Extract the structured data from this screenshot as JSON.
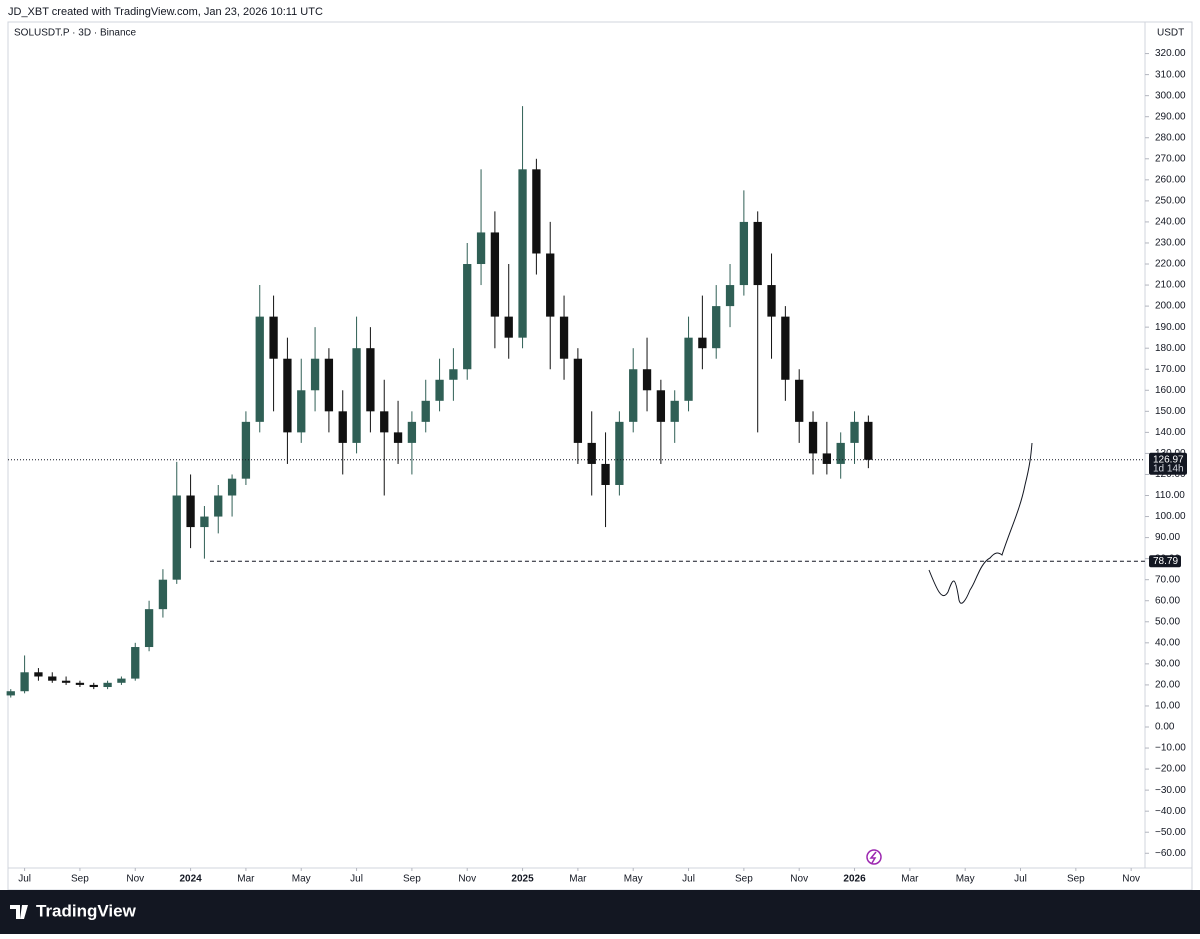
{
  "header": "JD_XBT created with TradingView.com, Jan 23, 2026 10:11 UTC",
  "footer": "TradingView",
  "chart_data": {
    "type": "candlestick",
    "title": "SOLUSDT.P · 3D · Binance",
    "ylabel": "USDT",
    "up_color": "#2f5f55",
    "down_color": "#111111",
    "x": [
      -0.5,
      0,
      0.5,
      1,
      1.5,
      2,
      2.5,
      3,
      3.5,
      4,
      4.5,
      5,
      5.5,
      6,
      6.5,
      7,
      7.5,
      8,
      8.5,
      9,
      9.5,
      10,
      10.5,
      11,
      11.5,
      12,
      12.5,
      13,
      13.5,
      14,
      14.5,
      15,
      15.5,
      16,
      16.5,
      17,
      17.5,
      18,
      18.5,
      19,
      19.5,
      20,
      20.5,
      21,
      21.5,
      22,
      22.5,
      23,
      23.5,
      24,
      24.5,
      25,
      25.5,
      26,
      26.5,
      27,
      27.5,
      28,
      28.5,
      29,
      29.5,
      30,
      30.5
    ],
    "open": [
      15,
      17,
      26,
      24,
      22,
      21,
      20,
      19,
      21,
      23,
      38,
      56,
      70,
      110,
      95,
      100,
      110,
      118,
      145,
      195,
      175,
      140,
      160,
      175,
      150,
      135,
      180,
      150,
      140,
      135,
      145,
      155,
      165,
      170,
      220,
      235,
      195,
      185,
      265,
      225,
      195,
      175,
      135,
      125,
      115,
      145,
      170,
      160,
      145,
      155,
      185,
      180,
      200,
      210,
      240,
      210,
      195,
      165,
      145,
      130,
      125,
      135,
      145
    ],
    "high": [
      18,
      34,
      28,
      26,
      24,
      22,
      21,
      22,
      24,
      40,
      60,
      75,
      126,
      120,
      105,
      115,
      120,
      150,
      210,
      205,
      185,
      175,
      190,
      180,
      160,
      195,
      190,
      165,
      155,
      150,
      165,
      175,
      180,
      230,
      265,
      245,
      220,
      295,
      270,
      240,
      205,
      180,
      150,
      140,
      150,
      180,
      185,
      165,
      160,
      195,
      205,
      210,
      220,
      255,
      245,
      225,
      200,
      170,
      150,
      145,
      140,
      150,
      148
    ],
    "low": [
      14,
      16,
      22,
      21,
      20,
      19,
      18,
      18,
      20,
      22,
      36,
      52,
      68,
      85,
      80,
      92,
      100,
      115,
      140,
      150,
      125,
      135,
      150,
      140,
      120,
      130,
      140,
      110,
      125,
      120,
      140,
      150,
      155,
      165,
      210,
      180,
      175,
      180,
      215,
      170,
      165,
      125,
      110,
      95,
      110,
      140,
      150,
      125,
      135,
      150,
      170,
      175,
      190,
      205,
      140,
      175,
      155,
      135,
      120,
      120,
      118,
      125,
      123
    ],
    "close": [
      17,
      26,
      24,
      22,
      21,
      20,
      19,
      21,
      23,
      38,
      56,
      70,
      110,
      95,
      100,
      110,
      118,
      145,
      195,
      175,
      140,
      160,
      175,
      150,
      135,
      180,
      150,
      140,
      135,
      145,
      155,
      165,
      170,
      220,
      235,
      195,
      185,
      265,
      225,
      195,
      175,
      135,
      125,
      115,
      145,
      170,
      160,
      145,
      155,
      185,
      180,
      200,
      210,
      240,
      210,
      195,
      165,
      145,
      130,
      125,
      135,
      145,
      126.97
    ],
    "xlim": [
      -0.6,
      40.5
    ],
    "xticks": [
      {
        "value": 0,
        "label": "Jul"
      },
      {
        "value": 2,
        "label": "Sep"
      },
      {
        "value": 4,
        "label": "Nov"
      },
      {
        "value": 6,
        "label": "2024"
      },
      {
        "value": 8,
        "label": "Mar"
      },
      {
        "value": 10,
        "label": "May"
      },
      {
        "value": 12,
        "label": "Jul"
      },
      {
        "value": 14,
        "label": "Sep"
      },
      {
        "value": 16,
        "label": "Nov"
      },
      {
        "value": 18,
        "label": "2025"
      },
      {
        "value": 20,
        "label": "Mar"
      },
      {
        "value": 22,
        "label": "May"
      },
      {
        "value": 24,
        "label": "Jul"
      },
      {
        "value": 26,
        "label": "Sep"
      },
      {
        "value": 28,
        "label": "Nov"
      },
      {
        "value": 30,
        "label": "2026"
      },
      {
        "value": 32,
        "label": "Mar"
      },
      {
        "value": 34,
        "label": "May"
      },
      {
        "value": 36,
        "label": "Jul"
      },
      {
        "value": 38,
        "label": "Sep"
      },
      {
        "value": 40,
        "label": "Nov"
      }
    ],
    "ylim": [
      -67,
      335
    ],
    "yticks": [
      {
        "value": 320,
        "label": "320.00"
      },
      {
        "value": 310,
        "label": "310.00"
      },
      {
        "value": 300,
        "label": "300.00"
      },
      {
        "value": 290,
        "label": "290.00"
      },
      {
        "value": 280,
        "label": "280.00"
      },
      {
        "value": 270,
        "label": "270.00"
      },
      {
        "value": 260,
        "label": "260.00"
      },
      {
        "value": 250,
        "label": "250.00"
      },
      {
        "value": 240,
        "label": "240.00"
      },
      {
        "value": 230,
        "label": "230.00"
      },
      {
        "value": 220,
        "label": "220.00"
      },
      {
        "value": 210,
        "label": "210.00"
      },
      {
        "value": 200,
        "label": "200.00"
      },
      {
        "value": 190,
        "label": "190.00"
      },
      {
        "value": 180,
        "label": "180.00"
      },
      {
        "value": 170,
        "label": "170.00"
      },
      {
        "value": 160,
        "label": "160.00"
      },
      {
        "value": 150,
        "label": "150.00"
      },
      {
        "value": 140,
        "label": "140.00"
      },
      {
        "value": 130,
        "label": "130.00"
      },
      {
        "value": 120,
        "label": "120.00"
      },
      {
        "value": 110,
        "label": "110.00"
      },
      {
        "value": 100,
        "label": "100.00"
      },
      {
        "value": 90,
        "label": "90.00"
      },
      {
        "value": 80,
        "label": "80.00"
      },
      {
        "value": 70,
        "label": "70.00"
      },
      {
        "value": 60,
        "label": "60.00"
      },
      {
        "value": 50,
        "label": "50.00"
      },
      {
        "value": 40,
        "label": "40.00"
      },
      {
        "value": 30,
        "label": "30.00"
      },
      {
        "value": 20,
        "label": "20.00"
      },
      {
        "value": 10,
        "label": "10.00"
      },
      {
        "value": 0,
        "label": "0.00"
      },
      {
        "value": -10,
        "label": "−10.00"
      },
      {
        "value": -20,
        "label": "−20.00"
      },
      {
        "value": -30,
        "label": "−30.00"
      },
      {
        "value": -40,
        "label": "−40.00"
      },
      {
        "value": -50,
        "label": "−50.00"
      },
      {
        "value": -60,
        "label": "−60.00"
      }
    ],
    "last_price": {
      "value": 126.97,
      "label": "126.97",
      "countdown": "1d 14h"
    },
    "level": {
      "value": 78.79,
      "label": "78.79",
      "from_x": 6.7
    }
  }
}
